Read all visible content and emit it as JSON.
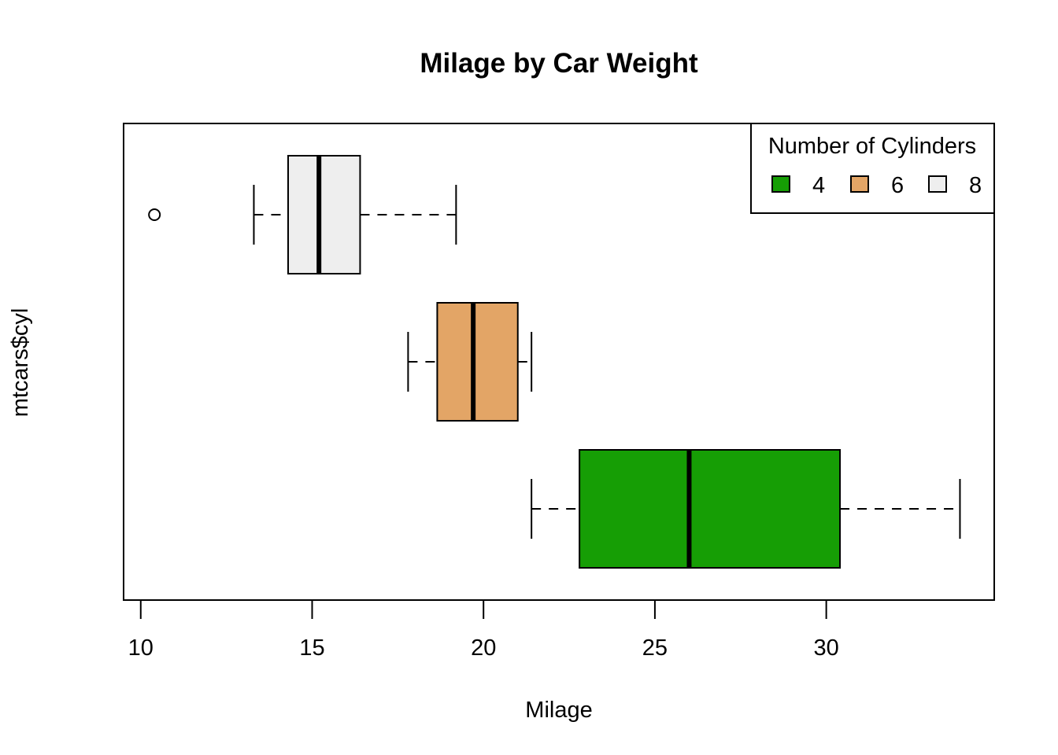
{
  "chart_data": {
    "type": "boxplot",
    "orientation": "horizontal",
    "title": "Milage by Car Weight",
    "xlabel": "Milage",
    "ylabel": "mtcars$cyl",
    "xlim": [
      9.5,
      34.9
    ],
    "xticks": [
      "10",
      "15",
      "20",
      "25",
      "30"
    ],
    "xtick_values": [
      10,
      15,
      20,
      25,
      30
    ],
    "grid": false,
    "legend": {
      "title": "Number of Cylinders",
      "placement": "top-right",
      "items": [
        {
          "label": "4",
          "color": "#169E05"
        },
        {
          "label": "6",
          "color": "#E3A566"
        },
        {
          "label": "8",
          "color": "#EEEEEE"
        }
      ]
    },
    "series": [
      {
        "group": "4",
        "color": "#169E05",
        "whisker_low": 21.4,
        "q1": 22.8,
        "median": 26.0,
        "q3": 30.4,
        "whisker_high": 33.9,
        "outliers": []
      },
      {
        "group": "6",
        "color": "#E3A566",
        "whisker_low": 17.8,
        "q1": 18.65,
        "median": 19.7,
        "q3": 21.0,
        "whisker_high": 21.4,
        "outliers": []
      },
      {
        "group": "8",
        "color": "#EEEEEE",
        "whisker_low": 13.3,
        "q1": 14.3,
        "median": 15.2,
        "q3": 16.4,
        "whisker_high": 19.2,
        "outliers": [
          10.4
        ]
      }
    ]
  }
}
